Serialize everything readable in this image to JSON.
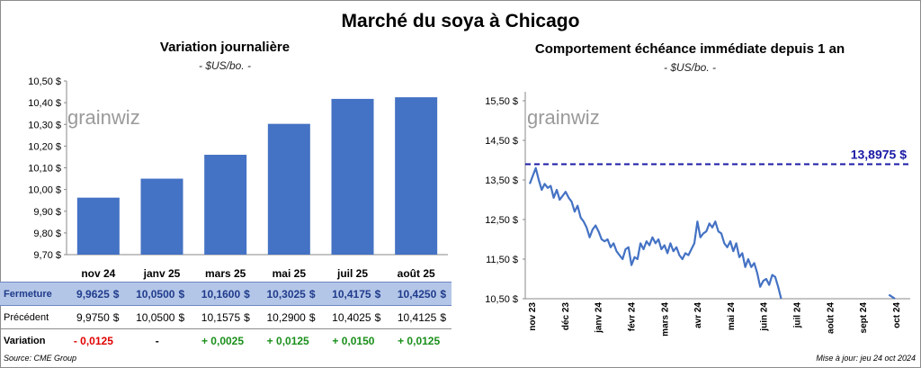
{
  "title": "Marché du soya à Chicago",
  "left": {
    "title": "Variation journalière",
    "unit": "- $US/bo. -",
    "watermark": "grainwiz"
  },
  "right": {
    "title": "Comportement échéance immédiate depuis 1 an",
    "unit": "- $US/bo. -",
    "watermark": "grainwiz",
    "ref_label": "13,8975 $"
  },
  "table": {
    "labels": {
      "close": "Fermeture",
      "prev": "Précédent",
      "var": "Variation"
    },
    "currency": "$",
    "rows": [
      {
        "close": "9,9625",
        "prev": "9,9750",
        "var": "- 0,0125",
        "sign": "neg"
      },
      {
        "close": "10,0500",
        "prev": "10,0500",
        "var": "-",
        "sign": "neu"
      },
      {
        "close": "10,1600",
        "prev": "10,1575",
        "var": "+ 0,0025",
        "sign": "pos"
      },
      {
        "close": "10,3025",
        "prev": "10,2900",
        "var": "+ 0,0125",
        "sign": "pos"
      },
      {
        "close": "10,4175",
        "prev": "10,4025",
        "var": "+ 0,0150",
        "sign": "pos"
      },
      {
        "close": "10,4250",
        "prev": "10,4125",
        "var": "+ 0,0125",
        "sign": "pos"
      }
    ]
  },
  "footer": {
    "source": "Source: CME Group",
    "updated": "Mise à jour: jeu 24 oct 2024"
  },
  "colors": {
    "bar": "#4472c4",
    "line": "#4472c4",
    "ref_line": "#1a1aa6",
    "close_row_bg": "#b4c6e7",
    "negative": "#e00000",
    "positive": "#1a8f1a"
  },
  "chart_data": [
    {
      "type": "bar",
      "title": "Variation journalière",
      "subtitle": "- $US/bo. -",
      "categories": [
        "nov 24",
        "janv 25",
        "mars 25",
        "mai 25",
        "juil 25",
        "août 25"
      ],
      "values": [
        9.9625,
        10.05,
        10.16,
        10.3025,
        10.4175,
        10.425
      ],
      "ylim": [
        9.7,
        10.5
      ],
      "yticks": [
        9.7,
        9.8,
        9.9,
        10.0,
        10.1,
        10.2,
        10.3,
        10.4,
        10.5
      ],
      "ytick_labels": [
        "9,70 $",
        "9,80 $",
        "9,90 $",
        "10,00 $",
        "10,10 $",
        "10,20 $",
        "10,30 $",
        "10,40 $",
        "10,50 $"
      ],
      "grid": false,
      "legend": "none"
    },
    {
      "type": "line",
      "title": "Comportement échéance immédiate depuis 1 an",
      "subtitle": "- $US/bo. -",
      "x_month_labels": [
        "nov 23",
        "déc 23",
        "janv 24",
        "févr 24",
        "mars 24",
        "avr 24",
        "mai 24",
        "juin 24",
        "juil 24",
        "août 24",
        "sept 24",
        "oct 24"
      ],
      "ylim": [
        10.5,
        15.5
      ],
      "yticks": [
        10.5,
        11.5,
        12.5,
        13.5,
        14.5,
        15.5
      ],
      "ytick_labels": [
        "10,50 $",
        "11,50 $",
        "12,50 $",
        "13,50 $",
        "14,50 $",
        "15,50 $"
      ],
      "reference_line": {
        "value": 13.8975,
        "label": "13,8975 $"
      },
      "series": [
        {
          "values": [
            13.4,
            13.6,
            13.8,
            13.5,
            13.25,
            13.4,
            13.3,
            13.35,
            13.05,
            13.25,
            13.0,
            13.1,
            13.2,
            13.05,
            12.95,
            12.7,
            12.85,
            12.55,
            12.45,
            12.3,
            12.05,
            12.25,
            12.35,
            12.2,
            12.0,
            11.95,
            12.0,
            11.8,
            11.9,
            11.7,
            11.6,
            11.5,
            11.75,
            11.8,
            11.35,
            11.55,
            11.5,
            11.9,
            11.75,
            11.95,
            11.85,
            12.05,
            11.9,
            12.0,
            11.75,
            11.85,
            11.65,
            11.9,
            11.7,
            11.8,
            11.6,
            11.5,
            11.65,
            11.6,
            11.75,
            11.9,
            12.45,
            12.05,
            12.15,
            12.2,
            12.4,
            12.3,
            12.45,
            12.2,
            12.15,
            11.9,
            11.8,
            11.95,
            11.7,
            11.9,
            11.55,
            11.65,
            11.3,
            11.5,
            11.3,
            11.4,
            11.15,
            10.8,
            10.95,
            11.0,
            10.85,
            11.1,
            11.05,
            10.8,
            10.5,
            null,
            null,
            null,
            null,
            null,
            null,
            null,
            null,
            null,
            null,
            null,
            null,
            null,
            null,
            null,
            null,
            null,
            null,
            null,
            null,
            null,
            null,
            null,
            null,
            null,
            null,
            null,
            null,
            null,
            null,
            null,
            null,
            null,
            null,
            null,
            10.6,
            10.55,
            10.5
          ]
        }
      ],
      "grid": false,
      "legend": "none"
    }
  ]
}
